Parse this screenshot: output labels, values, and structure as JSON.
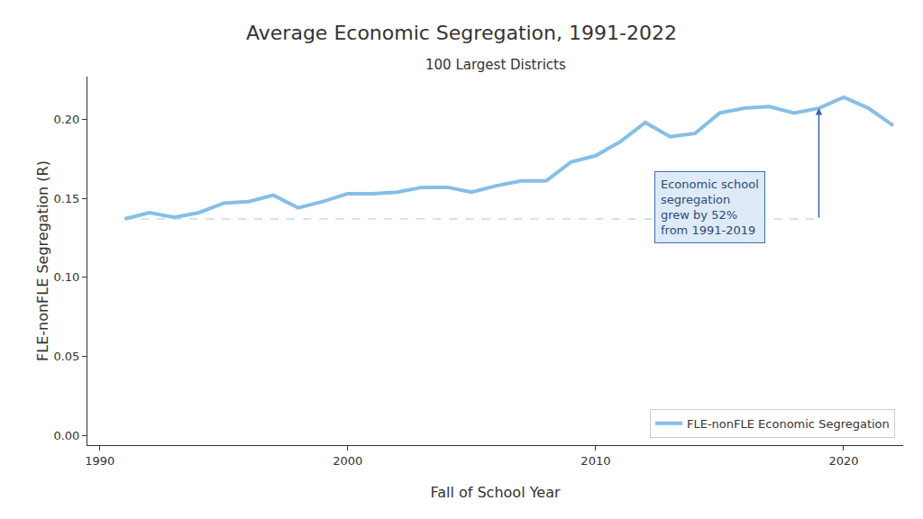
{
  "chart_data": {
    "type": "line",
    "title": "Average Economic Segregation, 1991-2022",
    "subtitle": "100 Largest Districts",
    "x_label": "Fall of School Year",
    "y_label": "FLE-nonFLE Segregation (R)",
    "x": [
      1991,
      1992,
      1993,
      1994,
      1995,
      1996,
      1997,
      1998,
      1999,
      2000,
      2001,
      2002,
      2003,
      2004,
      2005,
      2006,
      2007,
      2008,
      2009,
      2010,
      2011,
      2012,
      2013,
      2014,
      2015,
      2016,
      2017,
      2018,
      2019,
      2020,
      2021,
      2022
    ],
    "series": [
      {
        "name": "FLE-nonFLE Economic Segregation",
        "color": "#85bfe6",
        "values": [
          0.137,
          0.141,
          0.138,
          0.141,
          0.147,
          0.148,
          0.152,
          0.144,
          0.148,
          0.153,
          0.153,
          0.154,
          0.157,
          0.157,
          0.154,
          0.158,
          0.161,
          0.161,
          0.173,
          0.177,
          0.186,
          0.198,
          0.189,
          0.191,
          0.204,
          0.207,
          0.208,
          0.204,
          0.207,
          0.214,
          0.207,
          0.196
        ]
      }
    ],
    "xlim": [
      1989.5,
      2022.4
    ],
    "xticks": [
      1990,
      2000,
      2010,
      2020
    ],
    "ylim": [
      -0.006,
      0.227
    ],
    "yticks": [
      {
        "value": 0,
        "label": "0.00"
      },
      {
        "value": 0.05,
        "label": "0.05"
      },
      {
        "value": 0.1,
        "label": "0.10"
      },
      {
        "value": 0.15,
        "label": "0.15"
      },
      {
        "value": 0.2,
        "label": "0.20"
      }
    ],
    "annotations": [
      {
        "text_lines": [
          "Economic school",
          "segregation",
          "grew by 52%",
          "from 1991-2019"
        ],
        "from_x": 1991,
        "to_x": 2019
      }
    ],
    "grid": false,
    "legend": "bottom right"
  }
}
